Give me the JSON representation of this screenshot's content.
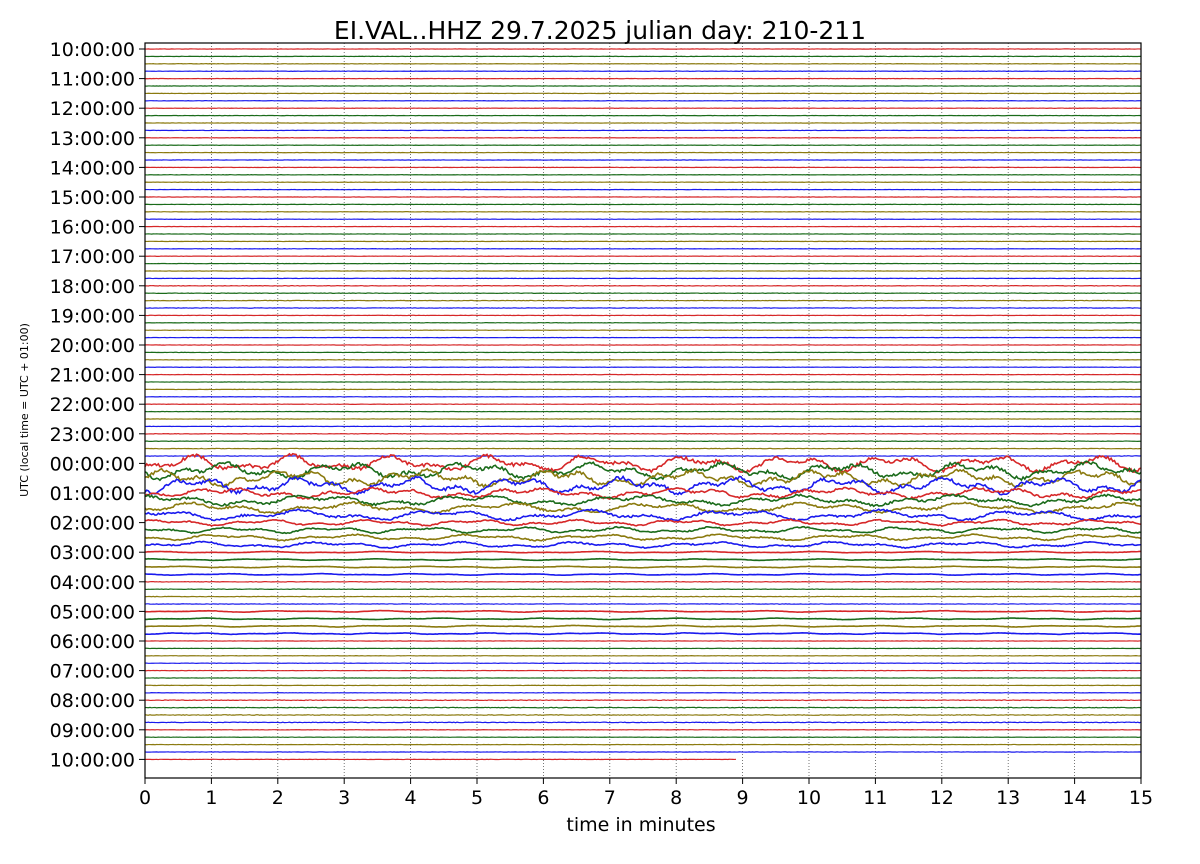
{
  "chart_data": {
    "type": "line",
    "title": "EI.VAL..HHZ   29.7.2025   julian day: 210-211",
    "xlabel": "time in minutes",
    "ylabel": "UTC (local time = UTC + 01:00)",
    "xlim": [
      0,
      15
    ],
    "x_ticks": [
      "0",
      "1",
      "2",
      "3",
      "4",
      "5",
      "6",
      "7",
      "8",
      "9",
      "10",
      "11",
      "12",
      "13",
      "14",
      "15"
    ],
    "y_ticks": [
      "10:00:00",
      "11:00:00",
      "12:00:00",
      "13:00:00",
      "14:00:00",
      "15:00:00",
      "16:00:00",
      "17:00:00",
      "18:00:00",
      "19:00:00",
      "20:00:00",
      "21:00:00",
      "22:00:00",
      "23:00:00",
      "00:00:00",
      "01:00:00",
      "02:00:00",
      "03:00:00",
      "04:00:00",
      "05:00:00",
      "06:00:00",
      "07:00:00",
      "08:00:00",
      "09:00:00",
      "10:00:00"
    ],
    "traces_per_hour": 4,
    "trace_minutes": 15,
    "trace_color_cycle": [
      "#d62728",
      "#1a6b1a",
      "#8b7a0f",
      "#1a1aee"
    ],
    "last_trace_end_minute": 8.9,
    "grid": "vertical dotted at each minute",
    "noise_amplitude_by_hour": [
      0.02,
      0.02,
      0.02,
      0.02,
      0.02,
      0.02,
      0.02,
      0.02,
      0.03,
      0.02,
      0.02,
      0.02,
      0.02,
      0.03,
      0.55,
      0.35,
      0.2,
      0.05,
      0.03,
      0.05,
      0.02,
      0.02,
      0.04,
      0.02,
      0.02
    ]
  }
}
